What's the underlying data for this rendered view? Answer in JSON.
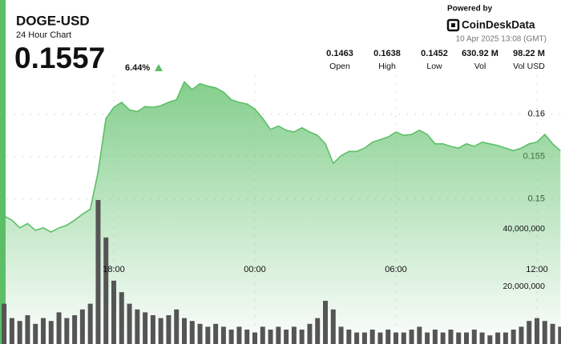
{
  "header": {
    "title": "DOGE-USD",
    "subtitle": "24 Hour Chart",
    "price": 0.1557,
    "change": "6.44%",
    "powered_by": "Powered by",
    "brand": "CoinDeskData",
    "timestamp": "10 Apr 2025 13:08 (GMT)",
    "stats": [
      {
        "value": 0.1463,
        "label": "Open"
      },
      {
        "value": 0.1638,
        "label": "High"
      },
      {
        "value": 0.1452,
        "label": "Low"
      },
      {
        "value": "630.92 M",
        "label": "Vol"
      },
      {
        "value": "98.22 M",
        "label": "Vol USD"
      }
    ]
  },
  "chart_data": {
    "type": "area",
    "categories": [
      "13:20",
      "13:40",
      "14:00",
      "14:20",
      "14:40",
      "15:00",
      "15:20",
      "15:40",
      "16:00",
      "16:20",
      "16:40",
      "17:00",
      "17:20",
      "17:40",
      "18:00",
      "18:20",
      "18:40",
      "19:00",
      "19:20",
      "19:40",
      "20:00",
      "20:20",
      "20:40",
      "21:00",
      "21:20",
      "21:40",
      "22:00",
      "22:20",
      "22:40",
      "23:00",
      "23:20",
      "23:40",
      "00:00",
      "00:20",
      "00:40",
      "01:00",
      "01:20",
      "01:40",
      "02:00",
      "02:20",
      "02:40",
      "03:00",
      "03:20",
      "03:40",
      "04:00",
      "04:20",
      "04:40",
      "05:00",
      "05:20",
      "05:40",
      "06:00",
      "06:20",
      "06:40",
      "07:00",
      "07:20",
      "07:40",
      "08:00",
      "08:20",
      "08:40",
      "09:00",
      "09:20",
      "09:40",
      "10:00",
      "10:20",
      "10:40",
      "11:00",
      "11:20",
      "11:40",
      "12:00",
      "12:20",
      "12:40",
      "13:00"
    ],
    "xticks": [
      "18:00",
      "00:00",
      "06:00",
      "12:00"
    ],
    "series": [
      {
        "name": "Price",
        "color": "#5cbf67",
        "values": [
          0.148,
          0.1475,
          0.1466,
          0.1471,
          0.1463,
          0.1466,
          0.1461,
          0.1466,
          0.1469,
          0.1475,
          0.1482,
          0.1488,
          0.1532,
          0.1595,
          0.1608,
          0.1614,
          0.1605,
          0.1603,
          0.1609,
          0.1608,
          0.161,
          0.1614,
          0.1617,
          0.1638,
          0.1629,
          0.1636,
          0.1633,
          0.1631,
          0.1626,
          0.1617,
          0.1614,
          0.1612,
          0.1606,
          0.1595,
          0.1582,
          0.1586,
          0.1581,
          0.1579,
          0.1584,
          0.1579,
          0.1575,
          0.1565,
          0.1542,
          0.1551,
          0.1556,
          0.1556,
          0.156,
          0.1567,
          0.157,
          0.1573,
          0.1579,
          0.1575,
          0.1576,
          0.1581,
          0.1576,
          0.1565,
          0.1565,
          0.1562,
          0.156,
          0.1565,
          0.1562,
          0.1567,
          0.1565,
          0.1563,
          0.156,
          0.1557,
          0.156,
          0.1565,
          0.1567,
          0.1576,
          0.1565,
          0.1557
        ]
      },
      {
        "name": "Volume",
        "color": "#555555",
        "axis": "y2",
        "values": [
          14000000,
          9000000,
          8000000,
          10000000,
          7000000,
          9000000,
          8000000,
          11000000,
          9000000,
          10000000,
          12000000,
          14000000,
          50000000,
          37000000,
          22000000,
          18000000,
          14000000,
          12000000,
          11000000,
          10000000,
          9000000,
          10000000,
          12000000,
          9000000,
          8000000,
          7000000,
          6000000,
          7000000,
          6000000,
          5000000,
          6000000,
          5000000,
          4000000,
          6000000,
          5000000,
          6000000,
          5000000,
          6000000,
          5000000,
          7000000,
          9000000,
          15000000,
          12000000,
          6000000,
          5000000,
          4000000,
          4000000,
          5000000,
          4000000,
          5000000,
          4000000,
          4000000,
          5000000,
          6000000,
          4000000,
          5000000,
          4000000,
          5000000,
          4000000,
          4000000,
          5000000,
          4000000,
          3000000,
          4000000,
          4000000,
          5000000,
          6000000,
          8000000,
          9000000,
          8000000,
          7000000,
          6000000
        ]
      }
    ],
    "ylim": [
      0.1329,
      0.1678
    ],
    "yticks": [
      0.15,
      0.155,
      0.16
    ],
    "y2lim": [
      0,
      102800000
    ],
    "y2ticks": [
      {
        "value": 20000000,
        "label": "20,000,000"
      },
      {
        "value": 40000000,
        "label": "40,000,000"
      }
    ],
    "grid": true
  }
}
